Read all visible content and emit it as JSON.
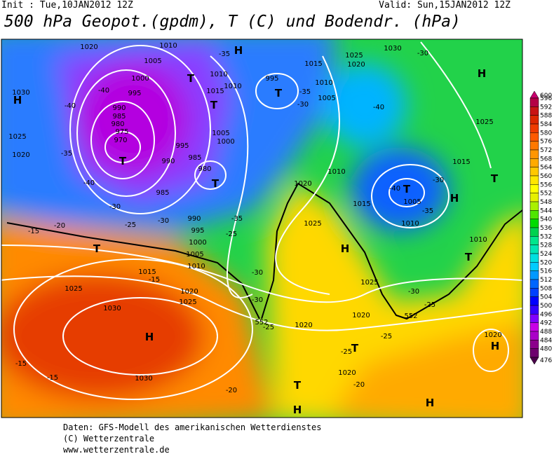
{
  "header": {
    "init": "Init : Tue,10JAN2012 12Z",
    "valid": "Valid: Sun,15JAN2012 12Z",
    "title": "500 hPa Geopot.(gpdm), T (C) und Bodendr. (hPa)"
  },
  "colorbar": {
    "levels": [
      600,
      596,
      592,
      588,
      584,
      580,
      576,
      572,
      568,
      564,
      560,
      556,
      552,
      548,
      544,
      540,
      536,
      532,
      528,
      524,
      520,
      516,
      512,
      508,
      504,
      500,
      496,
      492,
      488,
      484,
      480,
      476
    ],
    "colors": [
      "#c8006e",
      "#b40046",
      "#c81414",
      "#dc2800",
      "#f03c00",
      "#ff5a00",
      "#ff7800",
      "#ff9600",
      "#ffaa00",
      "#ffc800",
      "#ffe600",
      "#ffff00",
      "#e6f000",
      "#aaf000",
      "#50e600",
      "#00dc00",
      "#00d250",
      "#00e68c",
      "#00e6b4",
      "#00e0e0",
      "#00ccff",
      "#0099ff",
      "#0066ff",
      "#0040ff",
      "#0000ff",
      "#3300ff",
      "#8000ff",
      "#c800e6",
      "#aa00c8",
      "#8c008c",
      "#6e006e",
      "#4b004b"
    ]
  },
  "map_labels": [
    "H",
    "H",
    "H",
    "T",
    "T",
    "T",
    "T",
    "T",
    "T",
    "H",
    "T",
    "H",
    "T",
    "T",
    "H",
    "T",
    "H",
    "T",
    "H",
    "H",
    "1020",
    "1010",
    "1005",
    "1000",
    "995",
    "990",
    "985",
    "980",
    "975",
    "970",
    "1030",
    "1025",
    "1020",
    "1025",
    "1030",
    "1030",
    "1015",
    "1020",
    "1025",
    "1020",
    "1020",
    "1025",
    "1025",
    "1020",
    "1010",
    "1015",
    "1005",
    "1010",
    "1015",
    "1025",
    "1030",
    "1025",
    "1020",
    "1015",
    "1010",
    "1005",
    "995",
    "1010",
    "1015",
    "1010",
    "1005",
    "1000",
    "995",
    "985",
    "980",
    "990",
    "985",
    "990",
    "995",
    "1000",
    "1005",
    "1010",
    "1010",
    "1020",
    "1020",
    "-35",
    "-30",
    "-40",
    "-30",
    "-40",
    "-30",
    "-35",
    "-25",
    "-30",
    "-30",
    "-25",
    "-25",
    "-25",
    "-20",
    "-20",
    "-15",
    "-15",
    "-15",
    "-20",
    "-15",
    "-25",
    "-30",
    "-30",
    "-35",
    "-35",
    "-40",
    "-40",
    "-35",
    "-40",
    "-30",
    "-25",
    "552",
    "552"
  ],
  "footer": {
    "line1": "Daten: GFS-Modell des amerikanischen Wetterdienstes",
    "line2": "(C) Wetterzentrale",
    "line3": "www.wetterzentrale.de"
  }
}
